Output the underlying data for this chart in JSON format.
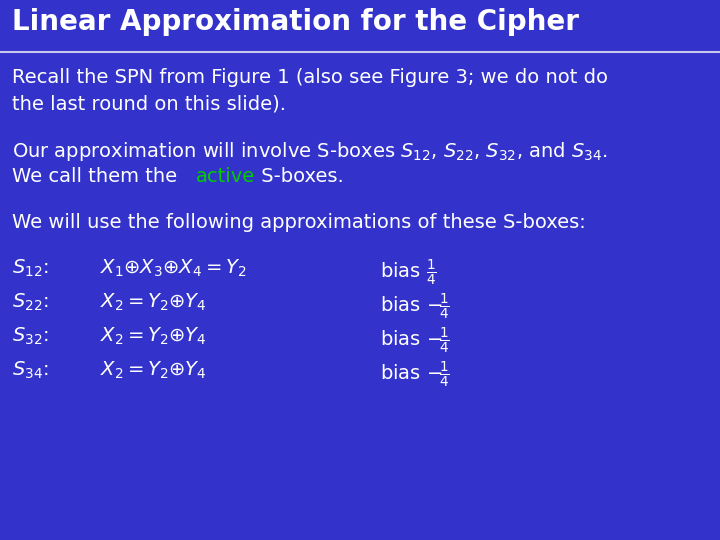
{
  "title": "Linear Approximation for the Cipher",
  "bg_color": "#3333cc",
  "title_color": "#ffffff",
  "text_color": "#ffffff",
  "active_color": "#00cc00",
  "divider_color": "#c8c8ee",
  "title_fontsize": 20,
  "body_fontsize": 14,
  "small_fontsize": 12,
  "font_family": "Comic Sans MS",
  "line1": "Recall the SPN from Figure 1 (also see Figure 3; we do not do",
  "line2": "the last round on this slide).",
  "line5": "We will use the following approximations of these S-boxes:"
}
